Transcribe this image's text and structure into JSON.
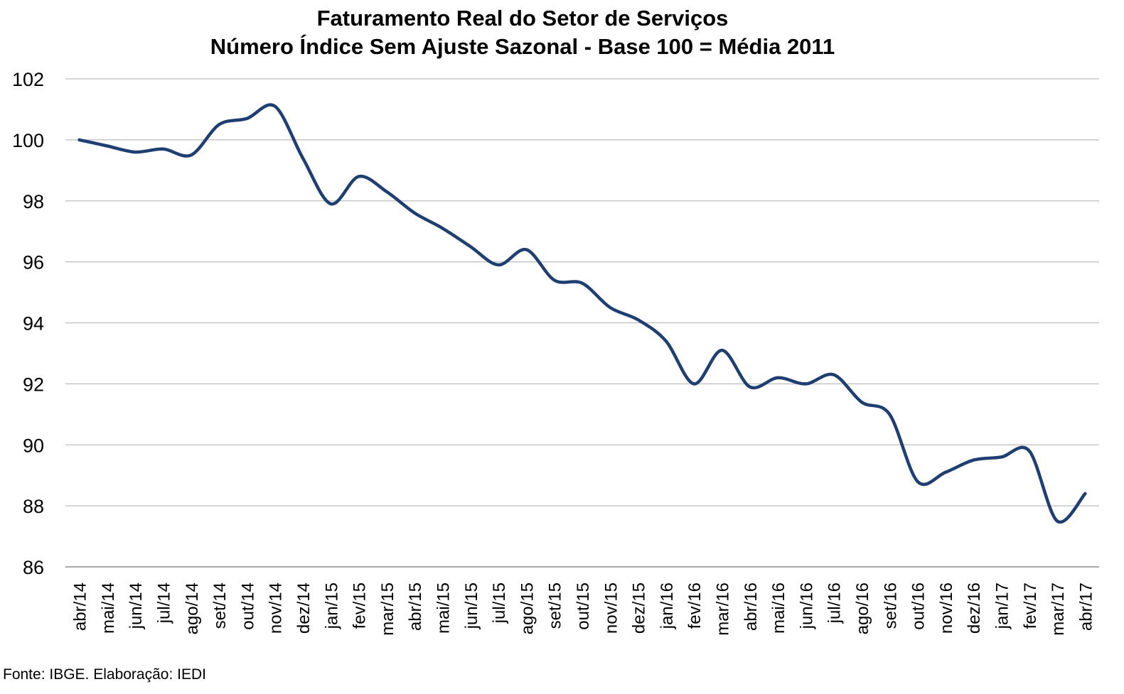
{
  "chart_data": {
    "type": "line",
    "title": "Faturamento Real do Setor de Serviços",
    "subtitle": "Número Índice Sem Ajuste Sazonal - Base 100 = Média 2011",
    "xlabel": "",
    "ylabel": "",
    "ylim": [
      86,
      102
    ],
    "yticks": [
      "86",
      "88",
      "90",
      "92",
      "94",
      "96",
      "98",
      "100",
      "102"
    ],
    "grid": true,
    "legend": "none",
    "line_color": "#1f3f73",
    "categories": [
      "abr/14",
      "mai/14",
      "jun/14",
      "jul/14",
      "ago/14",
      "set/14",
      "out/14",
      "nov/14",
      "dez/14",
      "jan/15",
      "fev/15",
      "mar/15",
      "abr/15",
      "mai/15",
      "jun/15",
      "jul/15",
      "ago/15",
      "set/15",
      "out/15",
      "nov/15",
      "dez/15",
      "jan/16",
      "fev/16",
      "mar/16",
      "abr/16",
      "mai/16",
      "jun/16",
      "jul/16",
      "ago/16",
      "set/16",
      "out/16",
      "nov/16",
      "dez/16",
      "jan/17",
      "fev/17",
      "mar/17",
      "abr/17"
    ],
    "series": [
      {
        "values": [
          100.0,
          99.8,
          99.6,
          99.7,
          99.5,
          100.5,
          100.7,
          101.1,
          99.4,
          97.9,
          98.8,
          98.3,
          97.6,
          97.1,
          96.5,
          95.9,
          96.4,
          95.4,
          95.3,
          94.5,
          94.1,
          93.4,
          92.0,
          93.1,
          91.9,
          92.2,
          92.0,
          92.3,
          91.4,
          91.0,
          88.8,
          89.1,
          89.5,
          89.6,
          89.8,
          87.5,
          88.4
        ]
      }
    ],
    "source": "Fonte: IBGE. Elaboração: IEDI"
  }
}
